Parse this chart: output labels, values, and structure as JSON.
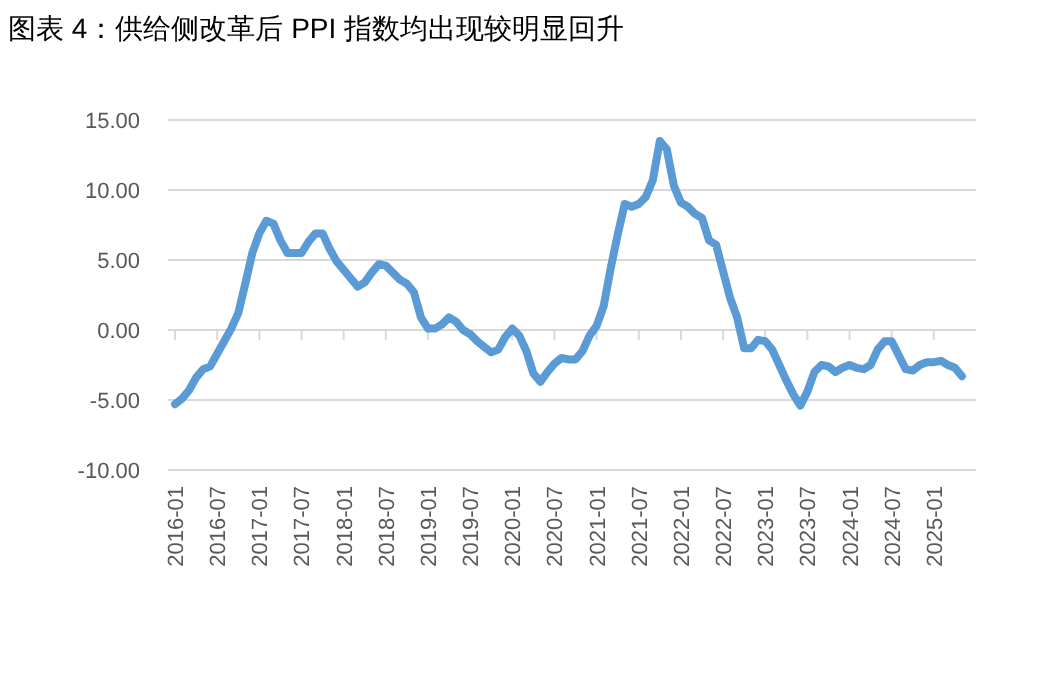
{
  "chart_data": {
    "type": "line",
    "title": "图表 4：供给侧改革后 PPI 指数均出现较明显回升",
    "x": [
      "2016-01",
      "2016-02",
      "2016-03",
      "2016-04",
      "2016-05",
      "2016-06",
      "2016-07",
      "2016-08",
      "2016-09",
      "2016-10",
      "2016-11",
      "2016-12",
      "2017-01",
      "2017-02",
      "2017-03",
      "2017-04",
      "2017-05",
      "2017-06",
      "2017-07",
      "2017-08",
      "2017-09",
      "2017-10",
      "2017-11",
      "2017-12",
      "2018-01",
      "2018-02",
      "2018-03",
      "2018-04",
      "2018-05",
      "2018-06",
      "2018-07",
      "2018-08",
      "2018-09",
      "2018-10",
      "2018-11",
      "2018-12",
      "2019-01",
      "2019-02",
      "2019-03",
      "2019-04",
      "2019-05",
      "2019-06",
      "2019-07",
      "2019-08",
      "2019-09",
      "2019-10",
      "2019-11",
      "2019-12",
      "2020-01",
      "2020-02",
      "2020-03",
      "2020-04",
      "2020-05",
      "2020-06",
      "2020-07",
      "2020-08",
      "2020-09",
      "2020-10",
      "2020-11",
      "2020-12",
      "2021-01",
      "2021-02",
      "2021-03",
      "2021-04",
      "2021-05",
      "2021-06",
      "2021-07",
      "2021-08",
      "2021-09",
      "2021-10",
      "2021-11",
      "2021-12",
      "2022-01",
      "2022-02",
      "2022-03",
      "2022-04",
      "2022-05",
      "2022-06",
      "2022-07",
      "2022-08",
      "2022-09",
      "2022-10",
      "2022-11",
      "2022-12",
      "2023-01",
      "2023-02",
      "2023-03",
      "2023-04",
      "2023-05",
      "2023-06",
      "2023-07",
      "2023-08",
      "2023-09",
      "2023-10",
      "2023-11",
      "2023-12",
      "2024-01",
      "2024-02",
      "2024-03",
      "2024-04",
      "2024-05",
      "2024-06",
      "2024-07",
      "2024-08",
      "2024-09",
      "2024-10",
      "2024-11",
      "2024-12",
      "2025-01",
      "2025-02",
      "2025-03",
      "2025-04",
      "2025-05"
    ],
    "series": [
      {
        "color": "#5b9bd5",
        "values": [
          -5.3,
          -4.9,
          -4.3,
          -3.4,
          -2.8,
          -2.6,
          -1.7,
          -0.8,
          0.1,
          1.2,
          3.3,
          5.5,
          6.9,
          7.8,
          7.6,
          6.4,
          5.5,
          5.5,
          5.5,
          6.3,
          6.9,
          6.9,
          5.8,
          4.9,
          4.3,
          3.7,
          3.1,
          3.4,
          4.1,
          4.7,
          4.6,
          4.1,
          3.6,
          3.3,
          2.7,
          0.9,
          0.1,
          0.1,
          0.4,
          0.9,
          0.6,
          0.0,
          -0.3,
          -0.8,
          -1.2,
          -1.6,
          -1.4,
          -0.5,
          0.1,
          -0.4,
          -1.5,
          -3.1,
          -3.7,
          -3.0,
          -2.4,
          -2.0,
          -2.1,
          -2.1,
          -1.5,
          -0.4,
          0.3,
          1.7,
          4.4,
          6.8,
          9.0,
          8.8,
          9.0,
          9.5,
          10.7,
          13.5,
          12.9,
          10.3,
          9.1,
          8.8,
          8.3,
          8.0,
          6.4,
          6.1,
          4.2,
          2.3,
          0.9,
          -1.3,
          -1.3,
          -0.7,
          -0.8,
          -1.4,
          -2.5,
          -3.6,
          -4.6,
          -5.4,
          -4.4,
          -3.0,
          -2.5,
          -2.6,
          -3.0,
          -2.7,
          -2.5,
          -2.7,
          -2.8,
          -2.5,
          -1.4,
          -0.8,
          -0.8,
          -1.8,
          -2.8,
          -2.9,
          -2.5,
          -2.3,
          -2.3,
          -2.2,
          -2.5,
          -2.7,
          -3.3
        ]
      }
    ],
    "xlim": [
      "2015-12",
      "2025-07"
    ],
    "xticks": [
      "2016-01",
      "2016-07",
      "2017-01",
      "2017-07",
      "2018-01",
      "2018-07",
      "2019-01",
      "2019-07",
      "2020-01",
      "2020-07",
      "2021-01",
      "2021-07",
      "2022-01",
      "2022-07",
      "2023-01",
      "2023-07",
      "2024-01",
      "2024-07",
      "2025-01"
    ],
    "ylim": [
      -10,
      15
    ],
    "yticks": [
      {
        "value": -10,
        "label": "-10.00"
      },
      {
        "value": -5,
        "label": "-5.00"
      },
      {
        "value": 0,
        "label": "0.00"
      },
      {
        "value": 5,
        "label": "5.00"
      },
      {
        "value": 10,
        "label": "10.00"
      },
      {
        "value": 15,
        "label": "15.00"
      }
    ],
    "grid": "y",
    "marker": "none",
    "line_style": "solid"
  }
}
